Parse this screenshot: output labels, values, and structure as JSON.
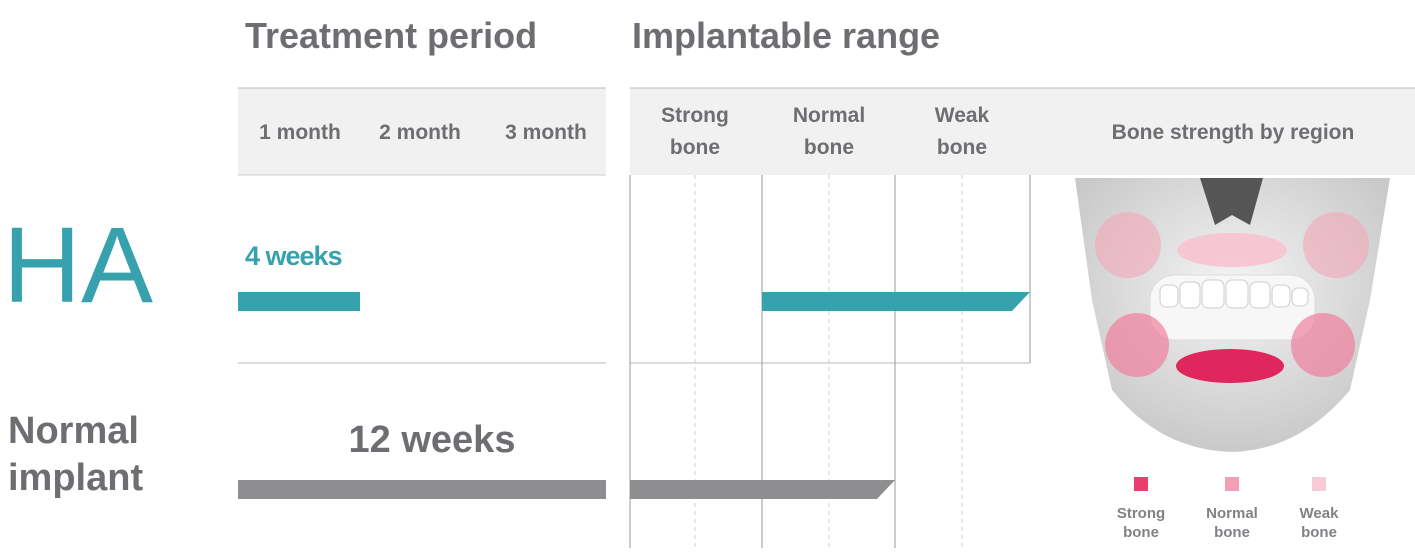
{
  "header": {
    "treatment_title": "Treatment period",
    "range_title": "Implantable range"
  },
  "months": [
    "1 month",
    "2 month",
    "3 month"
  ],
  "bone_columns": [
    [
      "Strong",
      "bone"
    ],
    [
      "Normal",
      "bone"
    ],
    [
      "Weak",
      "bone"
    ]
  ],
  "region_title": "Bone strength by region",
  "rows": [
    {
      "label": [
        "HA"
      ],
      "period": "4 weeks"
    },
    {
      "label": [
        "Normal",
        "implant"
      ],
      "period": "12 weeks"
    }
  ],
  "legend": [
    [
      "Strong",
      "bone"
    ],
    [
      "Normal",
      "bone"
    ],
    [
      "Weak",
      "bone"
    ]
  ]
}
